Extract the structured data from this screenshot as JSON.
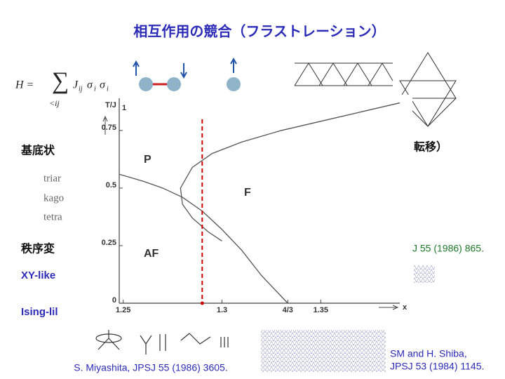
{
  "title": "相互作用の競合（フラストレーション）",
  "formula": [
    "H =",
    "∑",
    "<ij",
    "J",
    "ij",
    "σ",
    "i",
    "σ",
    "i"
  ],
  "ground_state": "基底状",
  "transition_tail": "転移）",
  "lattices": [
    "triar",
    "kago",
    "tetra"
  ],
  "order_change": "秩序変",
  "ref_right": "J 55 (1986) 865.",
  "xy_like": "XY-like",
  "ising_like": "Ising-lil",
  "ref_bottom": "S. Miyashita, JPSJ 55 (1986) 3605.",
  "ref_shiba": [
    "SM and H. Shiba,",
    "JPSJ 53 (1984) 1145."
  ],
  "chart_data": {
    "type": "line",
    "x_label": "x",
    "y_label": "T/J",
    "y_label_sub": "1",
    "xlim": [
      1.248,
      1.39
    ],
    "ylim": [
      0,
      0.89
    ],
    "xticks": [
      1.25,
      1.3,
      {
        "value": 1.3333,
        "label": "4/3"
      },
      1.35
    ],
    "yticks": [
      0,
      0.25,
      0.5,
      0.75
    ],
    "region_labels": [
      "P",
      "F",
      "AF"
    ],
    "series": [
      {
        "color": "#555555",
        "x": [
          1.39,
          1.37,
          1.35,
          1.33,
          1.31,
          1.295,
          1.285,
          1.279,
          1.28,
          1.285,
          1.293,
          1.3
        ],
        "values": [
          0.87,
          0.83,
          0.79,
          0.75,
          0.7,
          0.65,
          0.59,
          0.5,
          0.43,
          0.37,
          0.31,
          0.27
        ]
      },
      {
        "color": "#555555",
        "x": [
          1.248,
          1.26,
          1.27,
          1.28,
          1.29,
          1.3,
          1.31,
          1.32,
          1.3333
        ],
        "values": [
          0.56,
          0.53,
          0.5,
          0.46,
          0.4,
          0.32,
          0.23,
          0.12,
          0
        ]
      }
    ],
    "vline": {
      "x": 1.29,
      "color": "#cc0000"
    }
  }
}
